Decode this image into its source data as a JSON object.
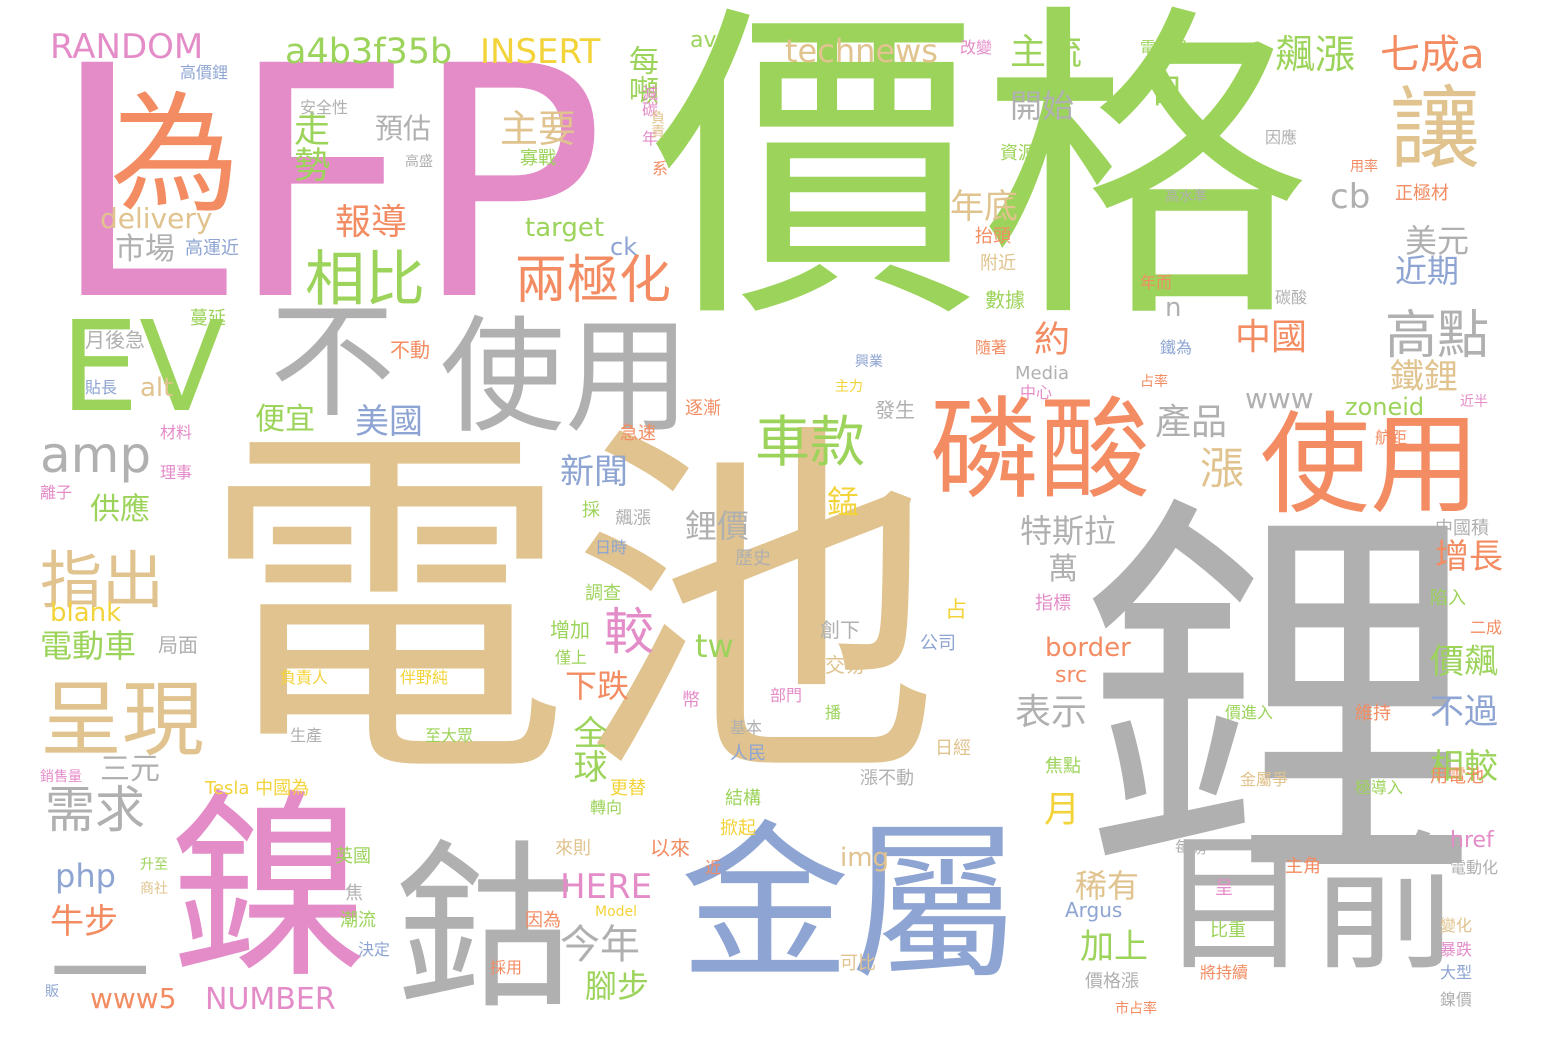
{
  "colors": {
    "green": "#9cd35a",
    "tan": "#e0c38e",
    "gray": "#b0b0b0",
    "orange": "#f38c62",
    "pink": "#e48cc8",
    "blue": "#8ea4d2",
    "teal": "#6bc59e",
    "yellow": "#f3d33a",
    "red": "#f37a5a"
  },
  "words": [
    "價格",
    "電池",
    "鋰",
    "LFP",
    "金屬",
    "鎳",
    "鈷",
    "目前",
    "使用",
    "磷酸",
    "使用",
    "為",
    "EV",
    "不",
    "讓",
    "一",
    "呈現",
    "相比",
    "amp",
    "車款",
    "兩極化",
    "指出",
    "高點",
    "需求",
    "較",
    "a4b3f35b",
    "RANDOM",
    "INSERT",
    "technews",
    "主流",
    "飆漲",
    "七成a",
    "主要",
    "走勢",
    "日",
    "報導",
    "市場",
    "delivery",
    "每噸",
    "預估",
    "開始",
    "年底",
    "cb",
    "美元",
    "近期",
    "約",
    "鐵鋰",
    "產品",
    "美國",
    "便宜",
    "新聞",
    "漲",
    "全球",
    "電動車",
    "供應",
    "鋰價",
    "特斯拉",
    "萬",
    "三元",
    "php",
    "www5",
    "NUMBER",
    "今年",
    "腳步",
    "加上",
    "稀有",
    "牛步",
    "HERE",
    "價飆",
    "不過",
    "增長",
    "相較",
    "月",
    "www",
    "zoneid",
    "中國",
    "n",
    "表示",
    "下跌",
    "tw",
    "border",
    "src",
    "alt",
    "blank",
    "img",
    "target",
    "ck",
    "avw",
    "高價鋰",
    "安全性",
    "電池級",
    "改變",
    "資源",
    "高水準",
    "碳酸",
    "月後急",
    "蔓延",
    "隨著",
    "鐵為",
    "Media",
    "錳",
    "Argus",
    "href",
    "Tesla 中國為",
    "二成",
    "正極材",
    "年而",
    "高運近",
    "抬頭",
    "數據",
    "附近",
    "不動",
    "逐漸",
    "發生",
    "急速",
    "理事",
    "材料",
    "離子",
    "採",
    "飆漲",
    "日時",
    "歷史",
    "調查",
    "增加",
    "僅上",
    "指標",
    "創下",
    "交易",
    "公司",
    "局面",
    "負責人",
    "伴野純",
    "生產",
    "至大眾",
    "基本",
    "人民",
    "部門",
    "播",
    "定",
    "漲不動",
    "焦點",
    "價進入",
    "維持",
    "極導入",
    "用電池",
    "金屬爭",
    "日經",
    "更替",
    "轉向",
    "結構",
    "掀起",
    "以來",
    "近",
    "每磅",
    "主角",
    "電動化",
    "英國",
    "焦",
    "潮流",
    "決定",
    "升至",
    "商社",
    "因為",
    "Model",
    "呈",
    "比重",
    "將持續",
    "變化",
    "暴跌",
    "大型",
    "鎳價",
    "市占率",
    "可比",
    "價格漲",
    "採用",
    "中國積",
    "陷入",
    "航距",
    "占率",
    "中心",
    "主力",
    "興業",
    "來則",
    "幣",
    "系",
    "年",
    "寡戰",
    "減碳",
    "負責",
    "高盛",
    "因應",
    "用率",
    "銷售量",
    "貼長",
    "販",
    "近半",
    "占"
  ]
}
